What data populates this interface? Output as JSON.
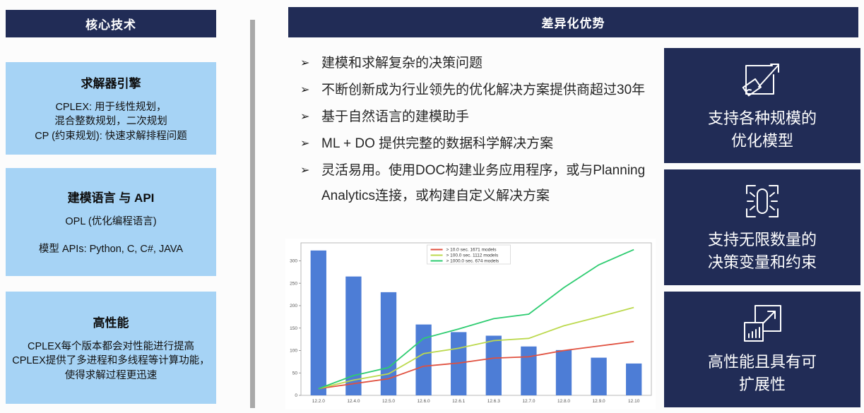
{
  "accent_colors": {
    "navy": "#212c56",
    "light_blue": "#a6d3f5",
    "divider_gray": "#a9a9a9"
  },
  "left_panel": {
    "header": "核心技术",
    "boxes": [
      {
        "title": "求解器引擎",
        "lines": [
          "CPLEX: 用于线性规划，",
          "混合整数规划，二次规划",
          "CP (约束规划): 快速求解排程问题"
        ]
      },
      {
        "title": "建模语言 与 API",
        "lines": [
          "OPL (优化编程语言)",
          "模型 APIs: Python, C, C#, JAVA"
        ]
      },
      {
        "title": "高性能",
        "lines": [
          "CPLEX每个版本都会对性能进行提高",
          "CPLEX提供了多进程和多线程等计算功能，",
          "使得求解过程更迅速"
        ]
      }
    ]
  },
  "right_panel": {
    "header": "差异化优势",
    "bullet_marker": "➢",
    "bullets": [
      "建模和求解复杂的决策问题",
      "不断创新成为行业领先的优化解决方案提供商超过30年",
      "基于自然语言的建模助手",
      "ML + DO 提供完整的数据科学解决方案",
      "灵活易用。使用DOC构建业务应用程序，或与Planning Analytics连接，或构建自定义解决方案"
    ],
    "features": [
      {
        "icon": "expand-model-icon",
        "lines": [
          "支持各种规模的",
          "优化模型"
        ]
      },
      {
        "icon": "unlimited-link-icon",
        "lines": [
          "支持无限数量的",
          "决策变量和约束"
        ]
      },
      {
        "icon": "scalable-performance-icon",
        "lines": [
          "高性能且具有可",
          "扩展性"
        ]
      }
    ]
  },
  "chart_data": {
    "type": "bar",
    "categories": [
      "12.2.0",
      "12.4.0",
      "12.5.0",
      "12.6.0",
      "12.6.1",
      "12.6.3",
      "12.7.0",
      "12.8.0",
      "12.9.0",
      "12.10"
    ],
    "bars": {
      "color": "#4d7dd6",
      "values": [
        323,
        265,
        230,
        158,
        141,
        133,
        109,
        101,
        84,
        71
      ]
    },
    "series": [
      {
        "name": "> 10.0 sec. 1671 models",
        "color": "#e0503f",
        "values": [
          15,
          26,
          37,
          65,
          72,
          83,
          86,
          100,
          110,
          120
        ]
      },
      {
        "name": "> 100.0 sec. 1112 models",
        "color": "#bcd94e",
        "values": [
          15,
          34,
          48,
          93,
          105,
          122,
          127,
          155,
          175,
          196
        ]
      },
      {
        "name": "> 1000.0 sec. 674 models",
        "color": "#2ecc71",
        "values": [
          15,
          44,
          62,
          127,
          148,
          171,
          181,
          240,
          291,
          325
        ]
      }
    ],
    "yticks": [
      0,
      50,
      100,
      150,
      200,
      250,
      300
    ],
    "ylim": [
      0,
      340
    ],
    "grid": false,
    "legend_position": "top-center"
  }
}
